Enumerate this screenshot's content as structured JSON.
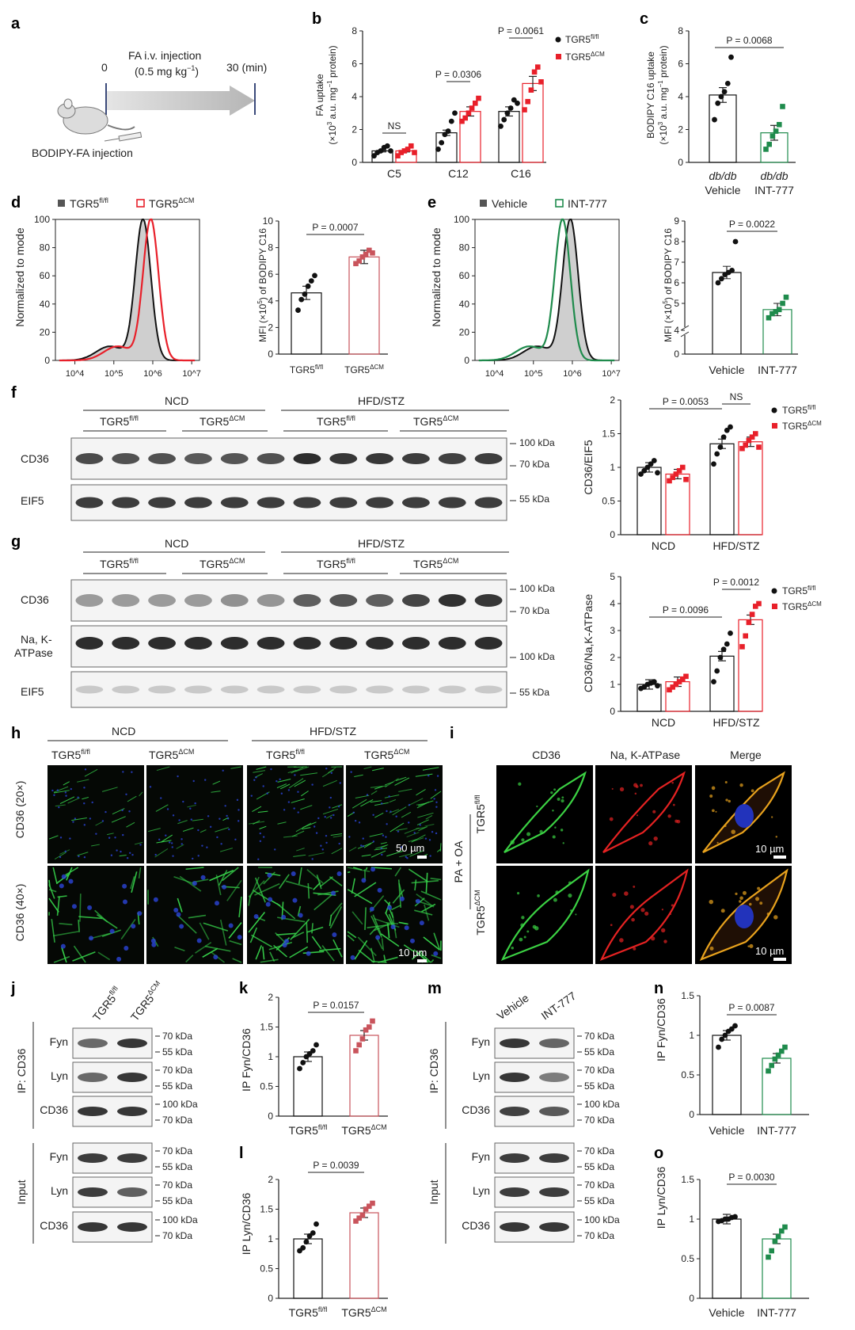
{
  "colors": {
    "black": "#111111",
    "red": "#e8202a",
    "pink": "#c9545c",
    "green": "#1f8b4c",
    "gray": "#bdbdbd"
  },
  "a": {
    "label": "a",
    "t0": "0",
    "t30": "30 (min)",
    "injection_line1": "FA i.v. injection",
    "injection_line2": "(0.5 mg kg",
    "injection_sup": "−1",
    "injection_close": ")",
    "bodipy": "BODIPY-FA injection"
  },
  "b": {
    "label": "b",
    "ylabel1": "FA uptake",
    "ylabel2": "(×10",
    "ylabel2_sup": "3",
    "ylabel2_rest": " a.u. mg",
    "ylabel2_sup2": "−1",
    "ylabel2_end": " protein)",
    "legend_ctrl": "TGR5",
    "legend_ctrl_sup": "fl/fl",
    "legend_ko": "TGR5",
    "legend_ko_sup": "ΔCM",
    "stats": [
      "NS",
      "P = 0.0306",
      "P = 0.0061"
    ]
  },
  "c": {
    "label": "c",
    "ylabel1": "BODIPY C16 uptake",
    "ylabel2": "(×10",
    "ylabel2_sup": "3",
    "ylabel2_rest": " a.u. mg",
    "ylabel2_sup2": "−1",
    "ylabel2_end": " protein)",
    "cat1a": "db/db",
    "cat1b": "Vehicle",
    "cat2a": "db/db",
    "cat2b": "INT-777",
    "stat": "P = 0.0068"
  },
  "d": {
    "label": "d",
    "legend_ctrl": "TGR5",
    "legend_ctrl_sup": "fl/fl",
    "legend_ko": "TGR5",
    "legend_ko_sup": "ΔCM",
    "ylabel": "Normalized to mode",
    "bar_ylabel": "MFI (×10",
    "bar_ylabel_sup": "5",
    "bar_ylabel_rest": ") of BODIPY C16",
    "cat1": "TGR5",
    "cat1_sup": "fl/fl",
    "cat2": "TGR5",
    "cat2_sup": "ΔCM",
    "stat": "P = 0.0007"
  },
  "e": {
    "label": "e",
    "legend_ctrl": "Vehicle",
    "legend_ko": "INT-777",
    "ylabel": "Normalized to mode",
    "bar_ylabel": "MFI (×10",
    "bar_ylabel_sup": "5",
    "bar_ylabel_rest": ") of BODIPY C16",
    "cat1": "Vehicle",
    "cat2": "INT-777",
    "stat": "P = 0.0022"
  },
  "f": {
    "label": "f",
    "ncd": "NCD",
    "hfd": "HFD/STZ",
    "ctrl": "TGR5",
    "ctrl_sup": "fl/fl",
    "ko": "TGR5",
    "ko_sup": "ΔCM",
    "row1": "CD36",
    "row2": "EIF5",
    "kda1": "100 kDa",
    "kda2": "70 kDa",
    "kda3": "55 kDa",
    "ylabel": "CD36/EIF5",
    "stats": [
      "P = 0.0053",
      "NS"
    ]
  },
  "g": {
    "label": "g",
    "ncd": "NCD",
    "hfd": "HFD/STZ",
    "ctrl": "TGR5",
    "ctrl_sup": "fl/fl",
    "ko": "TGR5",
    "ko_sup": "ΔCM",
    "row1": "CD36",
    "row2a": "Na, K-",
    "row2b": "ATPase",
    "row3": "EIF5",
    "kda1": "100 kDa",
    "kda2": "70 kDa",
    "kda3": "100 kDa",
    "kda4": "55 kDa",
    "ylabel": "CD36/Na,K-ATPase",
    "stats": [
      "P = 0.0096",
      "P = 0.0012"
    ]
  },
  "h": {
    "label": "h",
    "ncd": "NCD",
    "hfd": "HFD/STZ",
    "cols": [
      "TGR5",
      "TGR5",
      "TGR5",
      "TGR5"
    ],
    "col_sups": [
      "fl/fl",
      "ΔCM",
      "fl/fl",
      "ΔCM"
    ],
    "row1": "CD36 (20×)",
    "row2": "CD36 (40×)",
    "scale1": "50 µm",
    "scale2": "10 µm"
  },
  "i": {
    "label": "i",
    "cols": [
      "CD36",
      "Na, K-ATPase",
      "Merge"
    ],
    "treat": "PA + OA",
    "row1": "TGR5",
    "row1_sup": "fl/fl",
    "row2": "TGR5",
    "row2_sup": "ΔCM",
    "scale1": "10 µm",
    "scale2": "10 µm"
  },
  "j": {
    "label": "j",
    "lane1": "TGR5",
    "lane1_sup": "fl/fl",
    "lane2": "TGR5",
    "lane2_sup": "ΔCM",
    "ip": "IP: CD36",
    "input": "Input",
    "rows": [
      "Fyn",
      "Lyn",
      "CD36",
      "Fyn",
      "Lyn",
      "CD36"
    ],
    "kda": [
      [
        "70 kDa",
        "55 kDa"
      ],
      [
        "70 kDa",
        "55 kDa"
      ],
      [
        "100 kDa",
        "70 kDa"
      ],
      [
        "70 kDa",
        "55 kDa"
      ],
      [
        "70 kDa",
        "55 kDa"
      ],
      [
        "100 kDa",
        "70 kDa"
      ]
    ]
  },
  "k": {
    "label": "k",
    "ylabel": "IP Fyn/CD36",
    "cat1": "TGR5",
    "cat1_sup": "fl/fl",
    "cat2": "TGR5",
    "cat2_sup": "ΔCM",
    "stat": "P = 0.0157"
  },
  "l": {
    "label": "l",
    "ylabel": "IP Lyn/CD36",
    "cat1": "TGR5",
    "cat1_sup": "fl/fl",
    "cat2": "TGR5",
    "cat2_sup": "ΔCM",
    "stat": "P = 0.0039"
  },
  "m": {
    "label": "m",
    "lane1": "Vehicle",
    "lane2": "INT-777",
    "ip": "IP: CD36",
    "input": "Input",
    "rows": [
      "Fyn",
      "Lyn",
      "CD36",
      "Fyn",
      "Lyn",
      "CD36"
    ],
    "kda": [
      [
        "70 kDa",
        "55 kDa"
      ],
      [
        "70 kDa",
        "55 kDa"
      ],
      [
        "100 kDa",
        "70 kDa"
      ],
      [
        "70 kDa",
        "55 kDa"
      ],
      [
        "70 kDa",
        "55 kDa"
      ],
      [
        "100 kDa",
        "70 kDa"
      ]
    ]
  },
  "n": {
    "label": "n",
    "ylabel": "IP Fyn/CD36",
    "cat1": "Vehicle",
    "cat2": "INT-777",
    "stat": "P = 0.0087"
  },
  "o": {
    "label": "o",
    "ylabel": "IP Lyn/CD36",
    "cat1": "Vehicle",
    "cat2": "INT-777",
    "stat": "P = 0.0030"
  },
  "chart_data": [
    {
      "id": "b",
      "type": "bar",
      "categories": [
        "C5",
        "C12",
        "C16"
      ],
      "series": [
        {
          "name": "TGR5fl/fl",
          "values": [
            0.7,
            1.8,
            3.1
          ],
          "points": [
            [
              0.4,
              0.6,
              0.7,
              0.9,
              1.0,
              0.7
            ],
            [
              0.8,
              1.2,
              1.7,
              1.9,
              2.5,
              3.0
            ],
            [
              2.2,
              2.6,
              3.0,
              3.3,
              3.8,
              3.6
            ]
          ]
        },
        {
          "name": "TGR5ΔCM",
          "values": [
            0.7,
            3.1,
            4.8
          ],
          "points": [
            [
              0.4,
              0.6,
              0.7,
              0.8,
              1.0,
              0.6
            ],
            [
              2.5,
              2.7,
              3.0,
              3.3,
              3.6,
              3.9
            ],
            [
              3.2,
              3.7,
              4.4,
              5.5,
              5.8,
              4.9
            ]
          ]
        }
      ],
      "ylim": [
        0,
        8
      ],
      "yticks": [
        0,
        2,
        4,
        6,
        8
      ]
    },
    {
      "id": "c",
      "type": "bar",
      "categories": [
        "db/db Vehicle",
        "db/db INT-777"
      ],
      "values": [
        4.1,
        1.8
      ],
      "points": [
        [
          2.6,
          3.6,
          4.0,
          4.3,
          4.8,
          6.4
        ],
        [
          0.8,
          1.1,
          1.6,
          1.9,
          2.3,
          3.4
        ]
      ],
      "ylim": [
        0,
        8
      ],
      "yticks": [
        0,
        2,
        4,
        6,
        8
      ]
    },
    {
      "id": "d_hist",
      "type": "line",
      "xlabel": "",
      "xticks": [
        "10^4",
        "10^5",
        "10^6",
        "10^7"
      ],
      "ylim": [
        0,
        100
      ],
      "yticks": [
        0,
        20,
        40,
        60,
        80,
        100
      ],
      "series": [
        {
          "name": "TGR5fl/fl",
          "peak_log10": 5.75
        },
        {
          "name": "TGR5ΔCM",
          "peak_log10": 5.95
        }
      ]
    },
    {
      "id": "d",
      "type": "bar",
      "categories": [
        "TGR5fl/fl",
        "TGR5ΔCM"
      ],
      "values": [
        4.6,
        7.3
      ],
      "points": [
        [
          3.3,
          4.1,
          4.5,
          5.1,
          5.5,
          5.9
        ],
        [
          6.8,
          7.0,
          7.3,
          7.5,
          7.8,
          7.6
        ]
      ],
      "ylim": [
        0,
        10
      ],
      "yticks": [
        0,
        2,
        4,
        6,
        8,
        10
      ]
    },
    {
      "id": "e_hist",
      "type": "line",
      "xticks": [
        "10^4",
        "10^5",
        "10^6",
        "10^7"
      ],
      "ylim": [
        0,
        100
      ],
      "yticks": [
        0,
        20,
        40,
        60,
        80,
        100
      ],
      "series": [
        {
          "name": "Vehicle",
          "peak_log10": 5.95
        },
        {
          "name": "INT-777",
          "peak_log10": 5.75
        }
      ]
    },
    {
      "id": "e",
      "type": "bar",
      "categories": [
        "Vehicle",
        "INT-777"
      ],
      "values": [
        6.5,
        4.7
      ],
      "points": [
        [
          6.0,
          6.2,
          6.4,
          6.5,
          6.6,
          8.0
        ],
        [
          4.3,
          4.5,
          4.6,
          4.7,
          5.0,
          5.3
        ]
      ],
      "ylim": [
        0,
        9
      ],
      "yticks": [
        0,
        4,
        5,
        6,
        7,
        8,
        9
      ],
      "broken_axis": true
    },
    {
      "id": "f",
      "type": "bar",
      "categories": [
        "NCD",
        "HFD/STZ"
      ],
      "series": [
        {
          "name": "TGR5fl/fl",
          "values": [
            1.0,
            1.35
          ],
          "points": [
            [
              0.9,
              0.95,
              1.0,
              1.05,
              1.1,
              0.92
            ],
            [
              1.05,
              1.2,
              1.3,
              1.45,
              1.55,
              1.6
            ]
          ]
        },
        {
          "name": "TGR5ΔCM",
          "values": [
            0.9,
            1.38
          ],
          "points": [
            [
              0.8,
              0.85,
              0.9,
              0.95,
              1.0,
              0.82
            ],
            [
              1.28,
              1.33,
              1.4,
              1.45,
              1.5,
              1.3
            ]
          ]
        }
      ],
      "ylim": [
        0,
        2.0
      ],
      "yticks": [
        0,
        0.5,
        1.0,
        1.5,
        2.0
      ]
    },
    {
      "id": "g",
      "type": "bar",
      "categories": [
        "NCD",
        "HFD/STZ"
      ],
      "series": [
        {
          "name": "TGR5fl/fl",
          "values": [
            1.0,
            2.05
          ],
          "points": [
            [
              0.85,
              0.9,
              1.0,
              1.05,
              1.1,
              0.95
            ],
            [
              1.1,
              1.5,
              2.0,
              2.3,
              2.5,
              2.9
            ]
          ]
        },
        {
          "name": "TGR5ΔCM",
          "values": [
            1.1,
            3.4
          ],
          "points": [
            [
              0.8,
              0.9,
              1.0,
              1.1,
              1.2,
              1.3
            ],
            [
              2.4,
              2.8,
              3.3,
              3.6,
              3.9,
              4.0
            ]
          ]
        }
      ],
      "ylim": [
        0,
        5
      ],
      "yticks": [
        0,
        1,
        2,
        3,
        4,
        5
      ]
    },
    {
      "id": "k",
      "type": "bar",
      "categories": [
        "TGR5fl/fl",
        "TGR5ΔCM"
      ],
      "values": [
        1.0,
        1.36
      ],
      "points": [
        [
          0.8,
          0.9,
          1.0,
          1.05,
          1.1,
          1.2
        ],
        [
          1.1,
          1.2,
          1.3,
          1.45,
          1.5,
          1.6
        ]
      ],
      "ylim": [
        0,
        2.0
      ],
      "yticks": [
        0,
        0.5,
        1.0,
        1.5,
        2.0
      ]
    },
    {
      "id": "l",
      "type": "bar",
      "categories": [
        "TGR5fl/fl",
        "TGR5ΔCM"
      ],
      "values": [
        1.0,
        1.44
      ],
      "points": [
        [
          0.8,
          0.85,
          0.95,
          1.05,
          1.1,
          1.25
        ],
        [
          1.3,
          1.35,
          1.4,
          1.5,
          1.55,
          1.6
        ]
      ],
      "ylim": [
        0,
        2.0
      ],
      "yticks": [
        0,
        0.5,
        1.0,
        1.5,
        2.0
      ]
    },
    {
      "id": "n",
      "type": "bar",
      "categories": [
        "Vehicle",
        "INT-777"
      ],
      "values": [
        1.0,
        0.71
      ],
      "points": [
        [
          0.85,
          0.95,
          1.0,
          1.05,
          1.08,
          1.12
        ],
        [
          0.55,
          0.62,
          0.7,
          0.75,
          0.8,
          0.85
        ]
      ],
      "ylim": [
        0,
        1.5
      ],
      "yticks": [
        0,
        0.5,
        1.0,
        1.5
      ]
    },
    {
      "id": "o",
      "type": "bar",
      "categories": [
        "Vehicle",
        "INT-777"
      ],
      "values": [
        1.0,
        0.75
      ],
      "points": [
        [
          0.97,
          0.98,
          1.0,
          1.0,
          1.02,
          1.03
        ],
        [
          0.52,
          0.6,
          0.72,
          0.78,
          0.85,
          0.9
        ]
      ],
      "ylim": [
        0,
        1.5
      ],
      "yticks": [
        0,
        0.5,
        1.0,
        1.5
      ]
    }
  ]
}
